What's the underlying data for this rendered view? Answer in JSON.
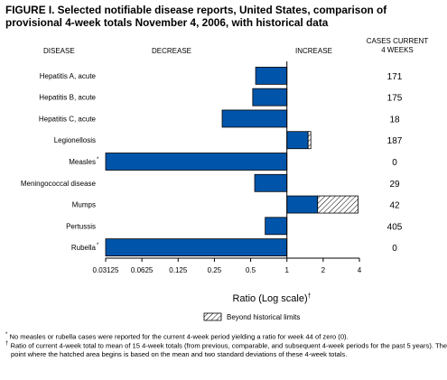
{
  "title": "FIGURE I. Selected notifiable disease reports, United States, comparison of provisional 4-week totals November 4, 2006, with historical data",
  "headers": {
    "disease": "DISEASE",
    "decrease": "DECREASE",
    "increase": "INCREASE",
    "cases_line1": "CASES CURRENT",
    "cases_line2": "4 WEEKS"
  },
  "legend": {
    "label": "Beyond historical limits"
  },
  "footnotes": {
    "star": "*",
    "note1": "No measles or rubella cases were reported for the current 4-week period yielding a ratio for week 44 of zero (0).",
    "dagger": "†",
    "note2": "Ratio of current 4-week total to mean of 15 4-week totals (from previous, comparable, and subsequent 4-week periods for the past 5 years). The point where the hatched area begins is based on the mean and two standard deviations of these 4-week totals."
  },
  "colors": {
    "bar": "#0055aa",
    "bar_edge": "#000000",
    "hatch": "#000000"
  },
  "chart_data": {
    "type": "bar",
    "orientation": "horizontal",
    "xscale": "log2",
    "xlabel": "Ratio (Log scale)",
    "xlabel_mark": "†",
    "xlim": [
      0.03125,
      4
    ],
    "xticks": [
      "0.03125",
      "0.0625",
      "0.125",
      "0.25",
      "0.5",
      "1",
      "2",
      "4"
    ],
    "xtick_values": [
      0.03125,
      0.0625,
      0.125,
      0.25,
      0.5,
      1,
      2,
      4
    ],
    "baseline": 1,
    "categories": [
      "Hepatitis A, acute",
      "Hepatitis B, acute",
      "Hepatitis C, acute",
      "Legionellosis",
      "Measles",
      "Meningococcal disease",
      "Mumps",
      "Pertussis",
      "Rubella"
    ],
    "category_marks": [
      "",
      "",
      "",
      "",
      "*",
      "",
      "",
      "",
      "*"
    ],
    "ratios": [
      0.55,
      0.52,
      0.29,
      1.58,
      0.03125,
      0.54,
      3.9,
      0.66,
      0.03125
    ],
    "hatch_start": [
      null,
      null,
      null,
      1.5,
      null,
      null,
      1.8,
      null,
      null
    ],
    "cases_current_4_weeks": [
      "171",
      "175",
      "18",
      "187",
      "0",
      "29",
      "42",
      "405",
      "0"
    ]
  }
}
